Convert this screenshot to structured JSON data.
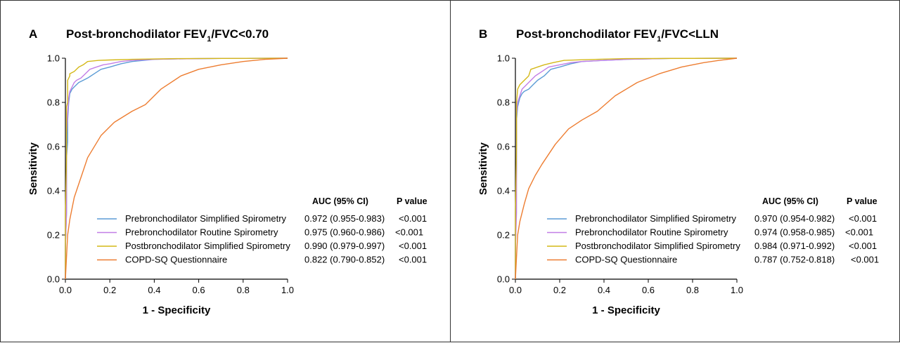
{
  "chart_data": [
    {
      "type": "line",
      "panel_label": "A",
      "title": "Post-bronchodilator FEV1/FVC<0.70",
      "title_main": "Post-bronchodilator FEV",
      "title_sub": "1",
      "title_tail": "/FVC<0.70",
      "xlabel": "1 - Specificity",
      "ylabel": "Sensitivity",
      "xlim": [
        0,
        1
      ],
      "ylim": [
        0,
        1
      ],
      "x_ticks": [
        "0.0",
        "0.2",
        "0.4",
        "0.6",
        "0.8",
        "1.0"
      ],
      "y_ticks": [
        "0.0",
        "0.2",
        "0.4",
        "0.6",
        "0.8",
        "1.0"
      ],
      "legend_header_auc": "AUC (95% CI)",
      "legend_header_p": "P value",
      "series": [
        {
          "name": "Prebronchodilator Simplified Spirometry",
          "color": "#5b9bd5",
          "auc": "0.972 (0.955-0.983)",
          "p": "<0.001",
          "x": [
            0,
            0,
            0.005,
            0.005,
            0.01,
            0.01,
            0.015,
            0.02,
            0.03,
            0.04,
            0.05,
            0.06,
            0.08,
            0.1,
            0.13,
            0.16,
            0.2,
            0.25,
            0.3,
            0.4,
            0.5,
            0.7,
            1.0
          ],
          "y": [
            0,
            0.15,
            0.3,
            0.55,
            0.62,
            0.72,
            0.8,
            0.84,
            0.86,
            0.87,
            0.88,
            0.89,
            0.9,
            0.91,
            0.93,
            0.95,
            0.96,
            0.975,
            0.985,
            0.995,
            0.997,
            0.999,
            1.0
          ]
        },
        {
          "name": "Prebronchodilator Routine Spirometry",
          "color": "#c27ee6",
          "auc": "0.975 (0.960-0.986)",
          "p": "<0.001",
          "x": [
            0,
            0,
            0.005,
            0.005,
            0.01,
            0.015,
            0.02,
            0.03,
            0.04,
            0.05,
            0.07,
            0.09,
            0.11,
            0.14,
            0.17,
            0.2,
            0.25,
            0.3,
            0.4,
            0.5,
            0.7,
            1.0
          ],
          "y": [
            0,
            0.15,
            0.3,
            0.65,
            0.75,
            0.82,
            0.85,
            0.87,
            0.89,
            0.9,
            0.91,
            0.93,
            0.95,
            0.96,
            0.97,
            0.975,
            0.985,
            0.99,
            0.995,
            0.997,
            0.999,
            1.0
          ]
        },
        {
          "name": "Postbronchodilator Simplified Spirometry",
          "color": "#d4b817",
          "auc": "0.990 (0.979-0.997)",
          "p": "<0.001",
          "x": [
            0,
            0,
            0.005,
            0.005,
            0.01,
            0.01,
            0.02,
            0.02,
            0.04,
            0.05,
            0.06,
            0.08,
            0.1,
            0.15,
            0.2,
            0.3,
            0.5,
            1.0
          ],
          "y": [
            0,
            0.3,
            0.55,
            0.78,
            0.8,
            0.9,
            0.92,
            0.93,
            0.94,
            0.95,
            0.96,
            0.97,
            0.985,
            0.99,
            0.992,
            0.995,
            0.998,
            1.0
          ]
        },
        {
          "name": "COPD-SQ Questionnaire",
          "color": "#ed7d31",
          "auc": "0.822 (0.790-0.852)",
          "p": "<0.001",
          "x": [
            0,
            0.01,
            0.02,
            0.04,
            0.07,
            0.1,
            0.16,
            0.22,
            0.3,
            0.36,
            0.43,
            0.52,
            0.6,
            0.7,
            0.8,
            0.9,
            1.0
          ],
          "y": [
            0,
            0.2,
            0.27,
            0.37,
            0.46,
            0.55,
            0.65,
            0.71,
            0.76,
            0.79,
            0.86,
            0.92,
            0.95,
            0.97,
            0.985,
            0.995,
            1.0
          ]
        }
      ]
    },
    {
      "type": "line",
      "panel_label": "B",
      "title": "Post-bronchodilator FEV1/FVC<LLN",
      "title_main": "Post-bronchodilator FEV",
      "title_sub": "1",
      "title_tail": "/FVC<LLN",
      "xlabel": "1 - Specificity",
      "ylabel": "Sensitivity",
      "xlim": [
        0,
        1
      ],
      "ylim": [
        0,
        1
      ],
      "x_ticks": [
        "0.0",
        "0.2",
        "0.4",
        "0.6",
        "0.8",
        "1.0"
      ],
      "y_ticks": [
        "0.0",
        "0.2",
        "0.4",
        "0.6",
        "0.8",
        "1.0"
      ],
      "legend_header_auc": "AUC (95% CI)",
      "legend_header_p": "P value",
      "series": [
        {
          "name": "Prebronchodilator Simplified Spirometry",
          "color": "#5b9bd5",
          "auc": "0.970 (0.954-0.982)",
          "p": "<0.001",
          "x": [
            0,
            0,
            0.005,
            0.005,
            0.01,
            0.015,
            0.02,
            0.03,
            0.04,
            0.06,
            0.08,
            0.1,
            0.13,
            0.16,
            0.2,
            0.25,
            0.3,
            0.4,
            0.5,
            0.7,
            1.0
          ],
          "y": [
            0,
            0.2,
            0.5,
            0.72,
            0.78,
            0.8,
            0.82,
            0.84,
            0.85,
            0.86,
            0.88,
            0.9,
            0.92,
            0.95,
            0.96,
            0.975,
            0.985,
            0.99,
            0.995,
            0.999,
            1.0
          ]
        },
        {
          "name": "Prebronchodilator Routine Spirometry",
          "color": "#c27ee6",
          "auc": "0.974 (0.958-0.985)",
          "p": "<0.001",
          "x": [
            0,
            0,
            0.005,
            0.005,
            0.01,
            0.02,
            0.03,
            0.05,
            0.07,
            0.09,
            0.12,
            0.15,
            0.2,
            0.25,
            0.3,
            0.4,
            0.5,
            0.7,
            1.0
          ],
          "y": [
            0,
            0.14,
            0.3,
            0.74,
            0.8,
            0.83,
            0.86,
            0.88,
            0.9,
            0.92,
            0.94,
            0.96,
            0.97,
            0.98,
            0.985,
            0.99,
            0.995,
            0.999,
            1.0
          ]
        },
        {
          "name": "Postbronchodilator Simplified Spirometry",
          "color": "#d4b817",
          "auc": "0.984 (0.971-0.992)",
          "p": "<0.001",
          "x": [
            0,
            0,
            0.005,
            0.005,
            0.01,
            0.02,
            0.04,
            0.06,
            0.07,
            0.1,
            0.13,
            0.17,
            0.22,
            0.3,
            0.4,
            0.5,
            1.0
          ],
          "y": [
            0,
            0.3,
            0.6,
            0.8,
            0.86,
            0.88,
            0.9,
            0.92,
            0.95,
            0.96,
            0.97,
            0.98,
            0.99,
            0.993,
            0.996,
            0.998,
            1.0
          ]
        },
        {
          "name": "COPD-SQ Questionnaire",
          "color": "#ed7d31",
          "auc": "0.787 (0.752-0.818)",
          "p": "<0.001",
          "x": [
            0,
            0.01,
            0.02,
            0.04,
            0.06,
            0.09,
            0.12,
            0.18,
            0.24,
            0.3,
            0.37,
            0.45,
            0.55,
            0.65,
            0.75,
            0.85,
            0.92,
            1.0
          ],
          "y": [
            0,
            0.2,
            0.26,
            0.34,
            0.41,
            0.47,
            0.52,
            0.61,
            0.68,
            0.72,
            0.76,
            0.83,
            0.89,
            0.93,
            0.96,
            0.98,
            0.99,
            1.0
          ]
        }
      ]
    }
  ]
}
